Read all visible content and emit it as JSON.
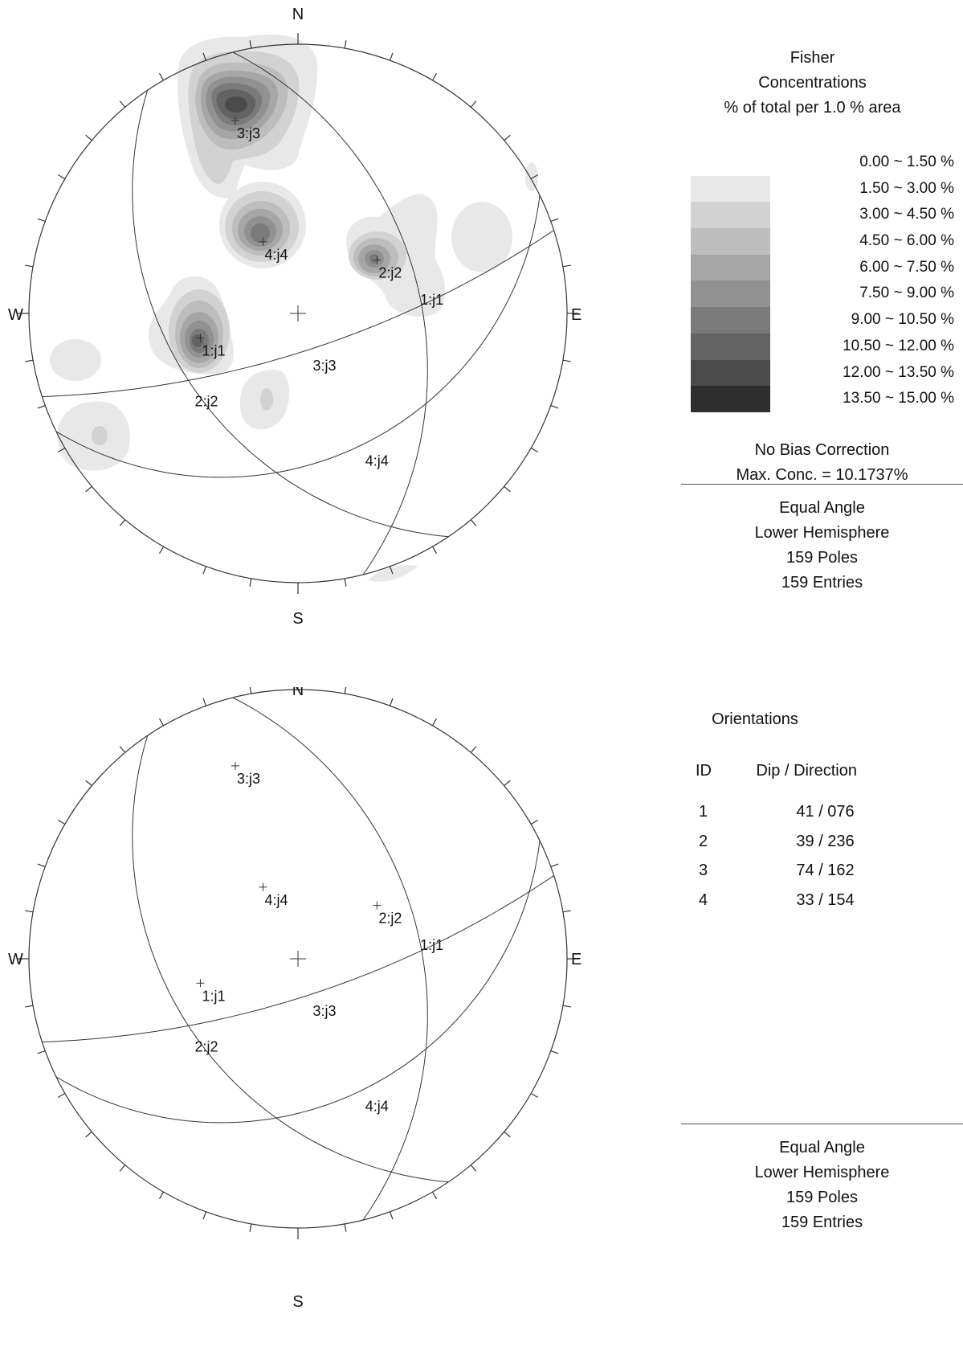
{
  "stereonet_top": {
    "compass": {
      "north": "N",
      "south": "S",
      "east": "E",
      "west": "W"
    },
    "contour_key": {
      "title": [
        "Fisher",
        "Concentrations",
        "% of total per 1.0 % area"
      ],
      "levels": [
        {
          "label": "0.00 ~  1.50 %",
          "color": "#e8e8e8"
        },
        {
          "label": "1.50 ~  3.00 %",
          "color": "#d2d2d2"
        },
        {
          "label": "3.00 ~  4.50 %",
          "color": "#bdbdbd"
        },
        {
          "label": "4.50 ~  6.00 %",
          "color": "#a6a6a6"
        },
        {
          "label": "6.00 ~  7.50 %",
          "color": "#919191"
        },
        {
          "label": "7.50 ~  9.00 %",
          "color": "#7a7a7a"
        },
        {
          "label": "9.00 ~ 10.50 %",
          "color": "#636363"
        },
        {
          "label": "10.50 ~ 12.00 %",
          "color": "#4b4b4b"
        },
        {
          "label": "12.00 ~ 13.50 %",
          "color": "#2e2e2e"
        },
        {
          "label": "13.50 ~ 15.00 %",
          "color": "#000000"
        }
      ],
      "bias_note": "No Bias Correction",
      "max_conc": "Max. Conc. = 10.1737%"
    },
    "projection": {
      "projection": "Equal Angle",
      "hemisphere": "Lower Hemisphere",
      "poles": "159 Poles",
      "entries": "159 Entries"
    }
  },
  "stereonet_bottom": {
    "compass": {
      "north": "N",
      "south": "S",
      "east": "E",
      "west": "W"
    },
    "orientations": {
      "title": "Orientations",
      "col_id": "ID",
      "col_value": "Dip / Direction",
      "rows": [
        {
          "id": "1",
          "value": "41  /  076"
        },
        {
          "id": "2",
          "value": "39  /  236"
        },
        {
          "id": "3",
          "value": "74  /  162"
        },
        {
          "id": "4",
          "value": "33  /  154"
        }
      ]
    },
    "projection": {
      "projection": "Equal Angle",
      "hemisphere": "Lower Hemisphere",
      "poles": "159 Poles",
      "entries": "159 Entries"
    }
  },
  "joint_sets": [
    {
      "id": 1,
      "dip": 41,
      "dip_direction": 76,
      "pole_label": "1:j1",
      "plane_label": "1:j1"
    },
    {
      "id": 2,
      "dip": 39,
      "dip_direction": 236,
      "pole_label": "2:j2",
      "plane_label": "2:j2"
    },
    {
      "id": 3,
      "dip": 74,
      "dip_direction": 162,
      "pole_label": "3:j3",
      "plane_label": "3:j3"
    },
    {
      "id": 4,
      "dip": 33,
      "dip_direction": 154,
      "pole_label": "4:j4",
      "plane_label": "4:j4"
    }
  ],
  "colors": {
    "line": "#333333",
    "text": "#111111"
  }
}
